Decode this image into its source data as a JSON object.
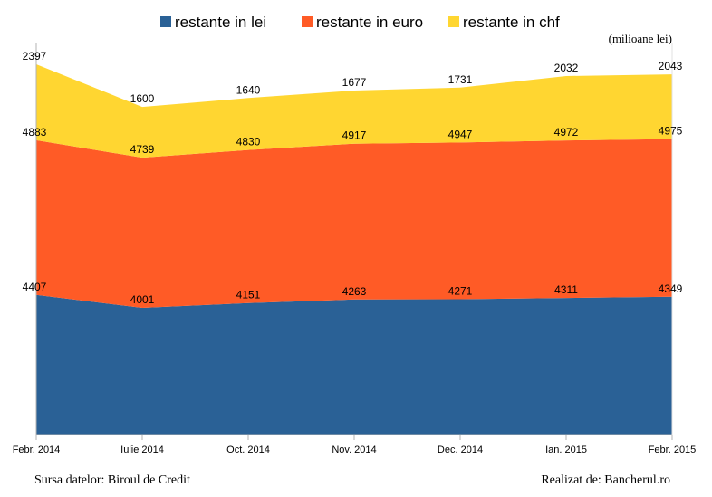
{
  "chart_data": {
    "type": "area",
    "stacked": true,
    "unit_note": "(milioane lei)",
    "categories": [
      "Febr. 2014",
      "Iulie 2014",
      "Oct. 2014",
      "Nov. 2014",
      "Dec. 2014",
      "Ian. 2015",
      "Febr. 2015"
    ],
    "series": [
      {
        "name": "restante in lei",
        "color": "#2a6196",
        "values": [
          4407,
          4001,
          4151,
          4263,
          4271,
          4311,
          4349
        ]
      },
      {
        "name": "restante in euro",
        "color": "#ff5b26",
        "values": [
          4883,
          4739,
          4830,
          4917,
          4947,
          4972,
          4975
        ]
      },
      {
        "name": "restante in chf",
        "color": "#ffd631",
        "values": [
          2397,
          1600,
          1640,
          1677,
          1731,
          2032,
          2043
        ]
      }
    ],
    "ylim": [
      0,
      12000
    ],
    "grid": false,
    "legend_position": "top"
  },
  "footer": {
    "source": "Sursa datelor: Biroul de Credit",
    "credit": "Realizat de: Bancherul.ro"
  }
}
